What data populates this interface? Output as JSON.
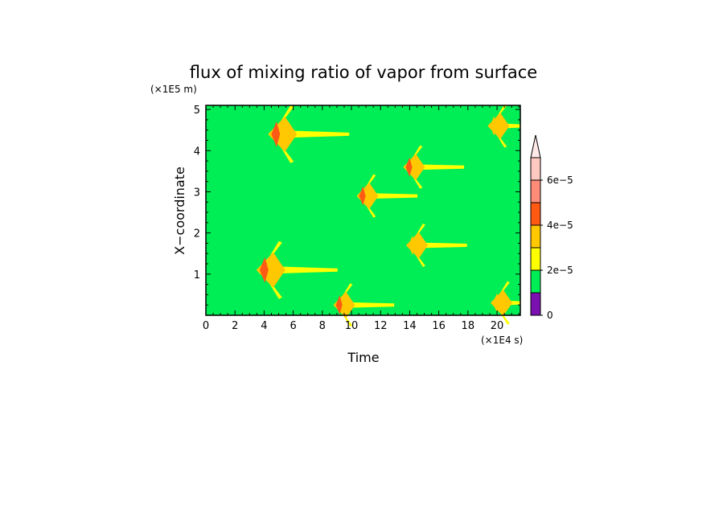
{
  "chart_data": {
    "type": "heatmap",
    "title": "flux of mixing ratio of vapor from surface",
    "xlabel": "Time",
    "ylabel": "X−coordinate",
    "x_unit": "(×1E4 s)",
    "y_unit": "(×1E5 m)",
    "xlim": [
      0,
      21.6
    ],
    "ylim": [
      0,
      5.1
    ],
    "x_ticks": [
      0,
      2,
      4,
      6,
      8,
      10,
      12,
      14,
      16,
      18,
      20
    ],
    "y_ticks": [
      1,
      2,
      3,
      4,
      5
    ],
    "colorbar": {
      "levels": [
        0,
        1e-05,
        2e-05,
        3e-05,
        4e-05,
        5e-05,
        6e-05,
        7e-05
      ],
      "labels": [
        "0",
        "2e−5",
        "4e−5",
        "6e−5"
      ],
      "label_values": [
        0,
        2e-05,
        4e-05,
        6e-05
      ],
      "colors": [
        "#7a10b0",
        "#00ee55",
        "#ffff00",
        "#ffc800",
        "#ff5a14",
        "#ff8c78",
        "#ffc8c0",
        "#ffe8e8"
      ],
      "extend": "max"
    },
    "background_value_range": [
      1e-05,
      2e-05
    ],
    "features": [
      {
        "t": 4.6,
        "x": 4.4,
        "peak": 4.2e-05,
        "spread": "wide"
      },
      {
        "t": 3.8,
        "x": 1.1,
        "peak": 4.2e-05,
        "spread": "wide"
      },
      {
        "t": 9.0,
        "x": 0.25,
        "peak": 4.2e-05,
        "spread": "medium"
      },
      {
        "t": 10.6,
        "x": 2.9,
        "peak": 4e-05,
        "spread": "medium"
      },
      {
        "t": 13.8,
        "x": 3.6,
        "peak": 4.2e-05,
        "spread": "medium"
      },
      {
        "t": 14.0,
        "x": 1.7,
        "peak": 3.8e-05,
        "spread": "medium"
      },
      {
        "t": 19.6,
        "x": 4.6,
        "peak": 3.6e-05,
        "spread": "medium"
      },
      {
        "t": 19.8,
        "x": 0.3,
        "peak": 3.4e-05,
        "spread": "medium"
      }
    ]
  }
}
